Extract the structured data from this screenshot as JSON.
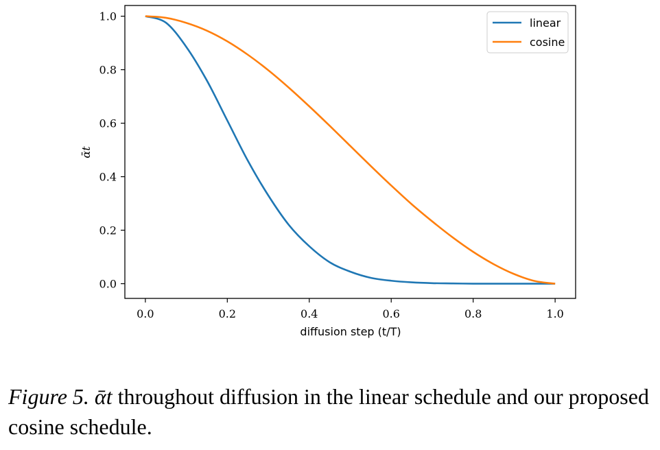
{
  "chart_data": {
    "type": "line",
    "title": "",
    "xlabel": "diffusion step (t/T)",
    "ylabel": "ᾱt",
    "xlim": [
      -0.05,
      1.05
    ],
    "ylim": [
      -0.055,
      1.04
    ],
    "xticks": [
      0.0,
      0.2,
      0.4,
      0.6,
      0.8,
      1.0
    ],
    "xtick_labels": [
      "0.0",
      "0.2",
      "0.4",
      "0.6",
      "0.8",
      "1.0"
    ],
    "yticks": [
      0.0,
      0.2,
      0.4,
      0.6,
      0.8,
      1.0
    ],
    "ytick_labels": [
      "0.0",
      "0.2",
      "0.4",
      "0.6",
      "0.8",
      "1.0"
    ],
    "legend_position": "top-right",
    "series": [
      {
        "name": "linear",
        "color": "#1f77b4",
        "x": [
          0.0,
          0.05,
          0.1,
          0.15,
          0.2,
          0.25,
          0.3,
          0.35,
          0.4,
          0.45,
          0.5,
          0.55,
          0.6,
          0.65,
          0.7,
          0.75,
          0.8,
          0.85,
          0.9,
          0.95,
          1.0
        ],
        "values": [
          1.0,
          0.976,
          0.885,
          0.76,
          0.61,
          0.46,
          0.33,
          0.22,
          0.14,
          0.08,
          0.045,
          0.022,
          0.011,
          0.005,
          0.002,
          0.001,
          0.0,
          0.0,
          0.0,
          0.0,
          0.0
        ]
      },
      {
        "name": "cosine",
        "color": "#ff7f0e",
        "x": [
          0.0,
          0.05,
          0.1,
          0.15,
          0.2,
          0.25,
          0.3,
          0.35,
          0.4,
          0.45,
          0.5,
          0.55,
          0.6,
          0.65,
          0.7,
          0.75,
          0.8,
          0.85,
          0.9,
          0.95,
          1.0
        ],
        "values": [
          1.0,
          0.994,
          0.975,
          0.946,
          0.906,
          0.856,
          0.798,
          0.733,
          0.663,
          0.59,
          0.515,
          0.44,
          0.367,
          0.297,
          0.233,
          0.173,
          0.119,
          0.073,
          0.036,
          0.01,
          0.0
        ]
      }
    ]
  },
  "caption": {
    "figure_label": "Figure 5.",
    "symbol": "ᾱt",
    "text": "throughout diffusion in the linear schedule and our proposed cosine schedule."
  }
}
